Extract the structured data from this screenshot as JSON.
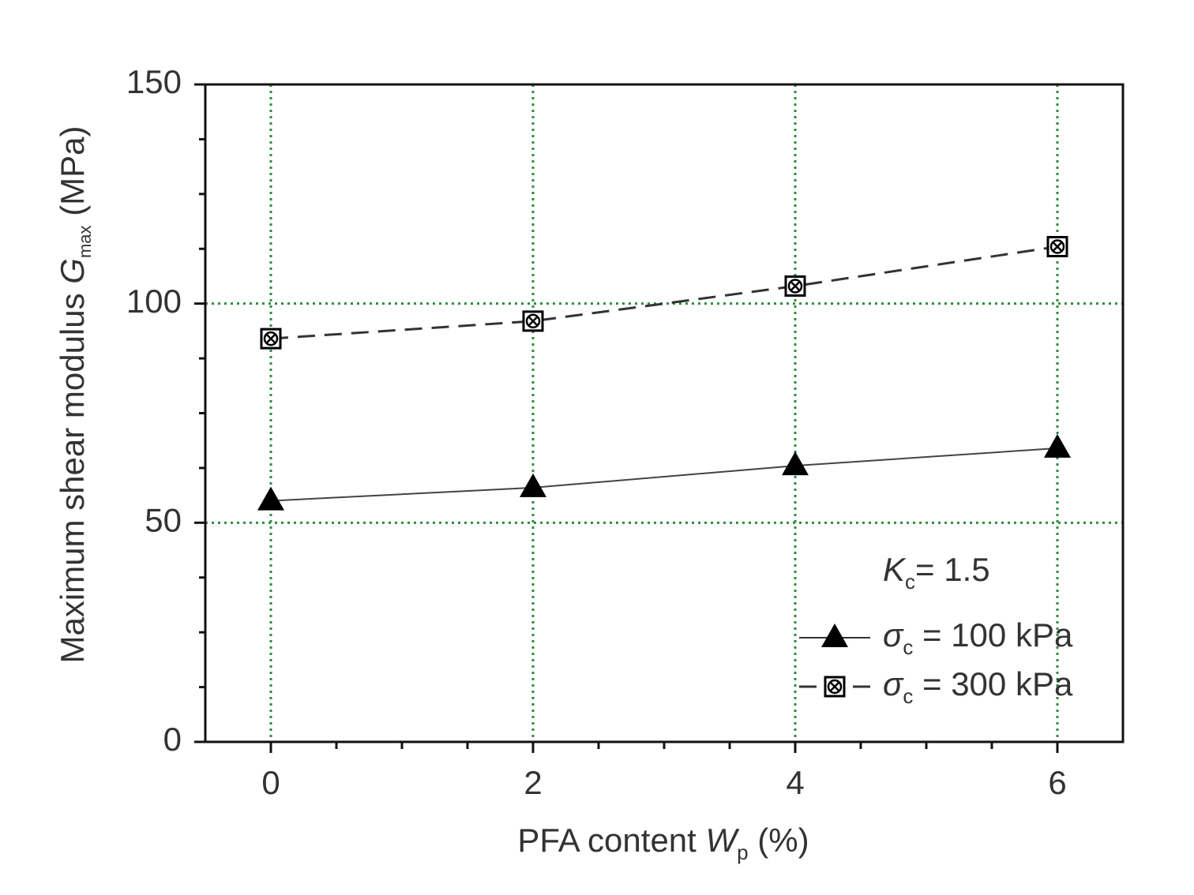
{
  "chart_data": {
    "type": "line",
    "x_label": {
      "text": "PFA content ",
      "symbol": "W",
      "subscript": "p",
      "unit": " (%)"
    },
    "y_label": {
      "text": "Maximum shear modulus ",
      "symbol": "G",
      "subscript": "max",
      "unit": " (MPa)"
    },
    "annotation": {
      "symbol": "K",
      "subscript": "c",
      "text": "= 1.5"
    },
    "x": [
      0,
      2,
      4,
      6
    ],
    "series": [
      {
        "name": {
          "symbol": "σ",
          "subscript": "c",
          "text": " = 100 kPa"
        },
        "color": "#000000",
        "marker": "triangle",
        "dash": false,
        "values": [
          55,
          58,
          63,
          67
        ]
      },
      {
        "name": {
          "symbol": "σ",
          "subscript": "c",
          "text": " = 300 kPa"
        },
        "color": "#000000",
        "marker": "crossed-square",
        "dash": true,
        "values": [
          92,
          96,
          104,
          113
        ]
      }
    ],
    "xlim": [
      -0.5,
      6.5
    ],
    "xticks": [
      0,
      2,
      4,
      6
    ],
    "xminorticks": [
      0.5,
      1,
      1.5,
      2.5,
      3,
      3.5,
      4.5,
      5,
      5.5
    ],
    "ylim": [
      0,
      150
    ],
    "yticks": [
      0,
      50,
      100,
      150
    ],
    "yminorticks": [
      12.5,
      25,
      37.5,
      62.5,
      75,
      87.5,
      112.5,
      125,
      137.5
    ],
    "grid": true,
    "grid_color": "#2e8b3e"
  }
}
